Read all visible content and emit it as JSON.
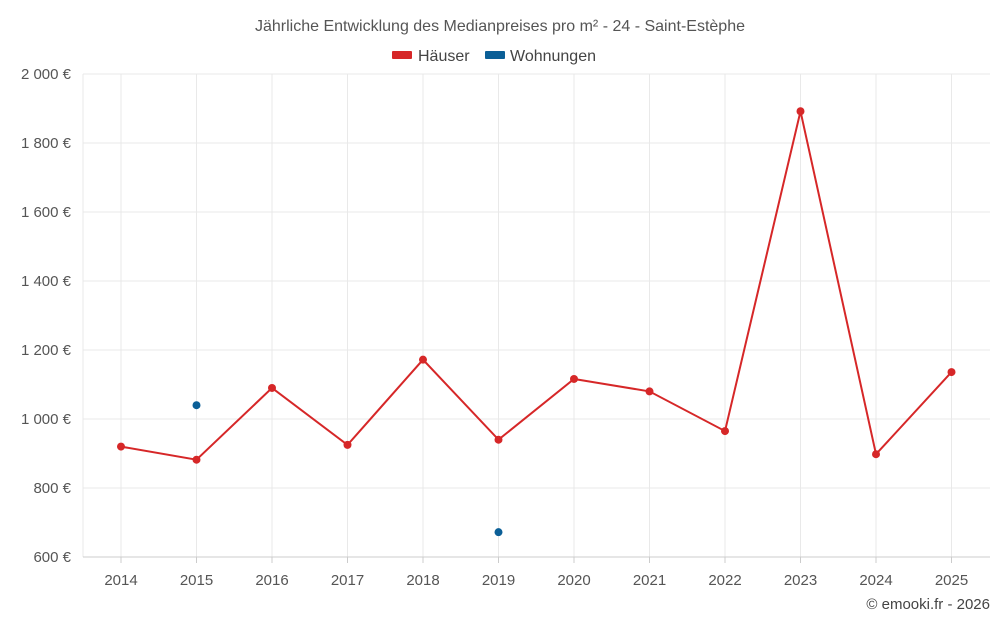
{
  "chart_data": {
    "type": "line",
    "title": "Jährliche Entwicklung des Medianpreises pro m² - 24 - Saint-Estèphe",
    "categories": [
      "2014",
      "2015",
      "2016",
      "2017",
      "2018",
      "2019",
      "2020",
      "2021",
      "2022",
      "2023",
      "2024",
      "2025"
    ],
    "series": [
      {
        "name": "Häuser",
        "color": "#d62728",
        "values": [
          920,
          882,
          1090,
          925,
          1172,
          940,
          1116,
          1080,
          965,
          1892,
          898,
          1136
        ]
      },
      {
        "name": "Wohnungen",
        "color": "#0b5f97",
        "values": [
          null,
          1040,
          null,
          null,
          null,
          672,
          null,
          null,
          null,
          null,
          null,
          null
        ]
      }
    ],
    "ylim": [
      600,
      2000
    ],
    "yticks": [
      600,
      800,
      1000,
      1200,
      1400,
      1600,
      1800,
      2000
    ],
    "ytick_labels": [
      "600 €",
      "800 €",
      "1 000 €",
      "1 200 €",
      "1 400 €",
      "1 600 €",
      "1 800 €",
      "2 000 €"
    ],
    "xlabel": "",
    "ylabel": "",
    "grid": true,
    "legend_position": "top-center",
    "credit": "© emooki.fr - 2026"
  }
}
